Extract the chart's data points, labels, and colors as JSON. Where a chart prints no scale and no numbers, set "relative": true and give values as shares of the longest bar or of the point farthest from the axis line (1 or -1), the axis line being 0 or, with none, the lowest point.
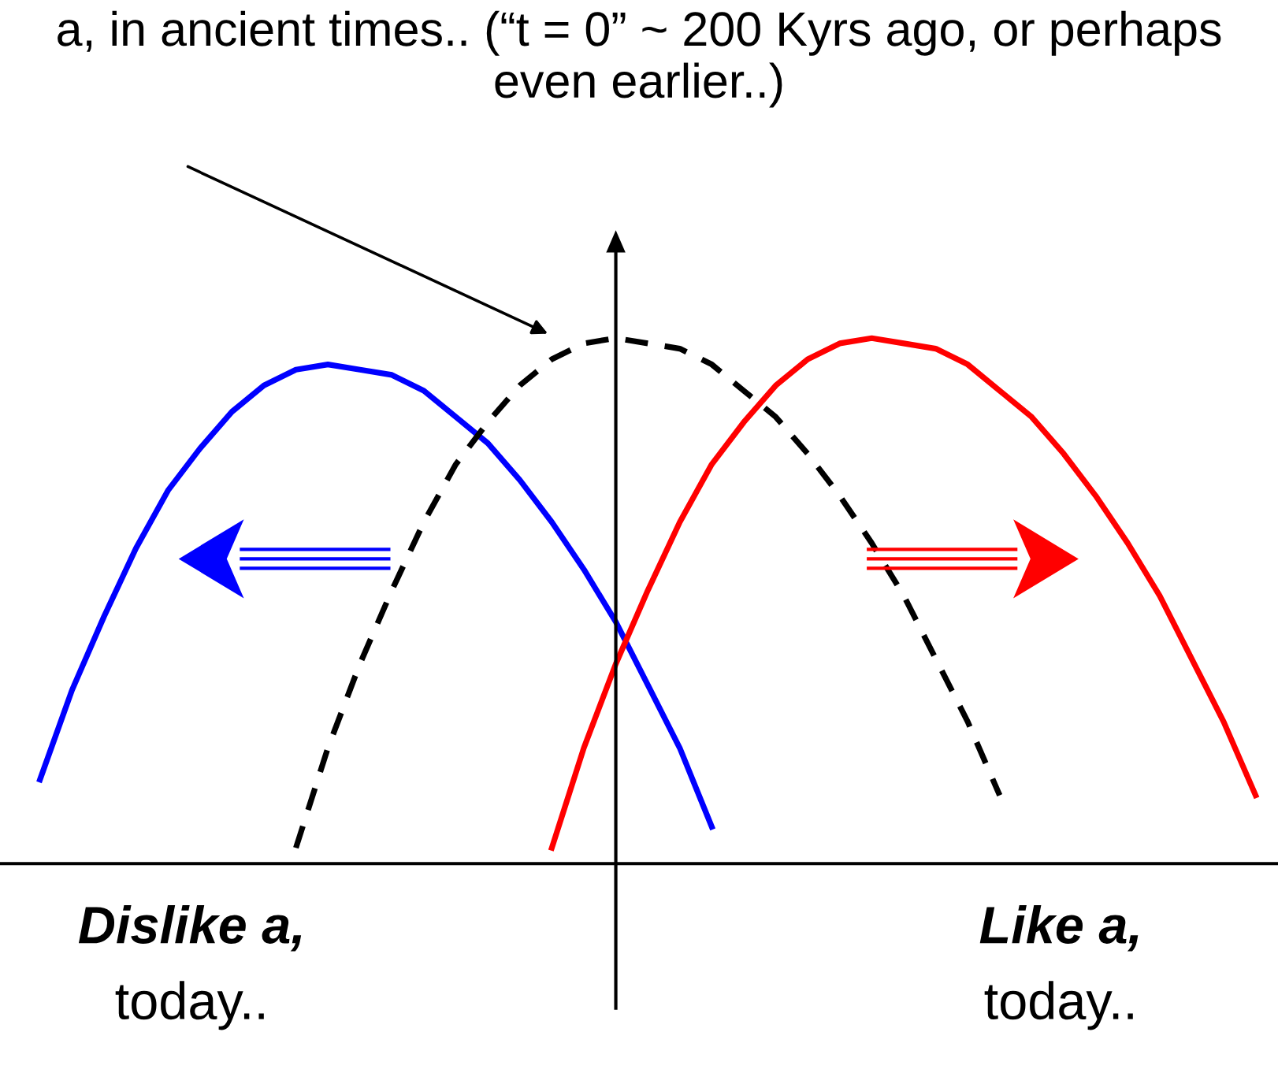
{
  "chart_data": {
    "type": "line",
    "relative": true,
    "title": "a, in ancient times.. (“t = 0” ~ 200 Kyrs ago, or perhaps even earlier..)",
    "categories": [
      null,
      null,
      null,
      null,
      null,
      null,
      null,
      null,
      null,
      null,
      null,
      null,
      null,
      null,
      null,
      null,
      null,
      null,
      null,
      null,
      null,
      null,
      null,
      null,
      null,
      null,
      null,
      null,
      null,
      null,
      null,
      null,
      null,
      null,
      null,
      null,
      null,
      null,
      null,
      null
    ],
    "series": [
      {
        "color": "#0000ff",
        "line_style": "solid",
        "values": [
          null,
          0.16,
          0.33,
          0.47,
          0.6,
          0.71,
          0.79,
          0.86,
          0.91,
          0.94,
          0.95,
          0.94,
          0.93,
          0.9,
          0.85,
          0.8,
          0.73,
          0.65,
          0.56,
          0.46,
          0.34,
          0.22,
          0.07,
          null,
          null,
          null,
          null,
          null,
          null,
          null,
          null,
          null,
          null,
          null,
          null,
          null,
          null,
          null,
          null,
          null
        ]
      },
      {
        "color": "#000000",
        "line_style": "dashed",
        "values": [
          null,
          null,
          null,
          null,
          null,
          null,
          null,
          null,
          null,
          0.03,
          0.22,
          0.38,
          0.52,
          0.65,
          0.76,
          0.84,
          0.91,
          0.96,
          0.99,
          1,
          0.99,
          0.98,
          0.95,
          0.9,
          0.85,
          0.78,
          0.7,
          0.61,
          0.51,
          0.39,
          0.27,
          0.13,
          null,
          null,
          null,
          null,
          null,
          null,
          null,
          null
        ]
      },
      {
        "color": "#ff0000",
        "line_style": "solid",
        "values": [
          null,
          null,
          null,
          null,
          null,
          null,
          null,
          null,
          null,
          null,
          null,
          null,
          null,
          null,
          null,
          null,
          null,
          0.03,
          0.22,
          0.38,
          0.52,
          0.65,
          0.76,
          0.84,
          0.91,
          0.96,
          0.99,
          1,
          0.99,
          0.98,
          0.95,
          0.9,
          0.85,
          0.78,
          0.7,
          0.61,
          0.51,
          0.39,
          0.27,
          0.13
        ]
      }
    ],
    "annotations": [
      "Dislike a,\ntoday..",
      "Like a,\ntoday.."
    ],
    "grid": false
  }
}
